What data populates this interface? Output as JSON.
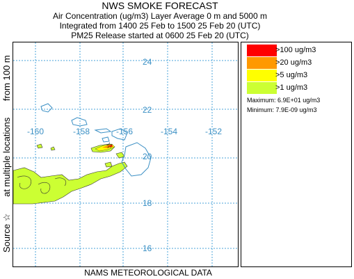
{
  "header": {
    "title": "NWS SMOKE FORECAST",
    "line1": "Air Concentration (ug/m3) Layer Average    0 m and  5000 m",
    "line2": "Integrated from 1400 25 Feb to 1500 25 Feb 20 (UTC)",
    "line3": "PM25 Release started at 0600 25 Feb 20 (UTC)"
  },
  "side_label": {
    "part1": "Source ☆",
    "part2": "at multiple locations",
    "part3": "from   100 m"
  },
  "footer": "NAMS METEOROLOGICAL DATA",
  "map": {
    "lon_labels": [
      "-160",
      "-158",
      "-156",
      "-154",
      "-152"
    ],
    "lat_labels": [
      "24",
      "22",
      "20",
      "18",
      "16"
    ],
    "grid_color": "#4aa3d8",
    "coast_color": "#3a8fc4",
    "smoke_colors": {
      "gt100": "#ff0000",
      "gt20": "#ff9900",
      "gt5": "#ffff00",
      "gt1": "#ccff33"
    }
  },
  "legend": {
    "items": [
      {
        "label": ">100 ug/m3",
        "color": "#ff0000"
      },
      {
        "label": ">20 ug/m3",
        "color": "#ff9900"
      },
      {
        "label": ">5 ug/m3",
        "color": "#ffff00"
      },
      {
        "label": ">1 ug/m3",
        "color": "#ccff33"
      }
    ],
    "maximum": "Maximum: 6.9E+01 ug/m3",
    "minimum": "Minimum: 7.9E-09 ug/m3"
  }
}
